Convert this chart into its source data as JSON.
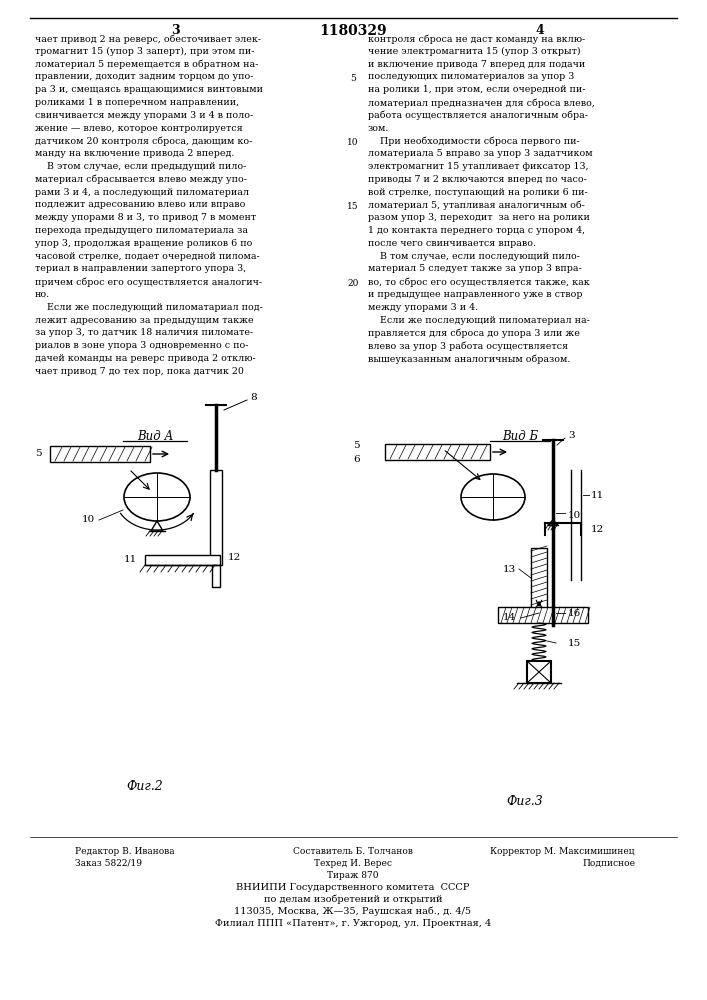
{
  "title_number": "1180329",
  "page_left": "3",
  "page_right": "4",
  "bg_color": "#ffffff",
  "text_color": "#000000",
  "left_column_lines": [
    "чает привод 2 на реверс, обесточивает элек-",
    "тромагнит 15 (упор 3 заперт), при этом пи-",
    "ломатериал 5 перемещается в обратном на-",
    "правлении, доходит задним торцом до упо-",
    "ра 3 и, смещаясь вращающимися винтовыми",
    "роликами 1 в поперечном направлении,",
    "свинчивается между упорами 3 и 4 в поло-",
    "жение — влево, которое контролируется",
    "датчиком 20 контроля сброса, дающим ко-",
    "манду на включение привода 2 вперед.",
    "    В этом случае, если предыдущий пило-",
    "материал сбрасывается влево между упо-",
    "рами 3 и 4, а последующий пиломатериал",
    "подлежит адресованию влево или вправо",
    "между упорами 8 и 3, то привод 7 в момент",
    "перехода предыдущего пиломатериала за",
    "упор 3, продолжая вращение роликов 6 по",
    "часовой стрелке, подает очередной пилома-",
    "териал в направлении запертого упора 3,",
    "причем сброс его осуществляется аналогич-",
    "но.",
    "    Если же последующий пиломатариал под-",
    "лежит адресованию за предыдущим также",
    "за упор 3, то датчик 18 наличия пиломате-",
    "риалов в зоне упора 3 одновременно с по-",
    "дачей команды на реверс привода 2 отклю-",
    "чает привод 7 до тех пор, пока датчик 20"
  ],
  "right_column_lines": [
    "контроля сброса не даст команду на вклю-",
    "чение электромагнита 15 (упор 3 открыт)",
    "и включение привода 7 вперед для подачи",
    "последующих пиломатериалов за упор 3",
    "на ролики 1, при этом, если очередной пи-",
    "ломатериал предназначен для сброса влево,",
    "работа осуществляется аналогичным обра-",
    "зом.",
    "    При необходимости сброса первого пи-",
    "ломатериала 5 вправо за упор 3 задатчиком",
    "электромагнит 15 утапливает фиксатор 13,",
    "приводы 7 и 2 включаются вперед по часо-",
    "вой стрелке, поступающий на ролики 6 пи-",
    "ломатериал 5, утапливая аналогичным об-",
    "разом упор 3, переходит  за него на ролики",
    "1 до контакта переднего торца с упором 4,",
    "после чего свинчивается вправо.",
    "    В том случае, если последующий пило-",
    "материал 5 следует также за упор 3 впра-",
    "во, то сброс его осуществляется также, как",
    "и предыдущее направленного уже в створ",
    "между упорами 3 и 4.",
    "    Если же последующий пиломатериал на-",
    "правляется для сброса до упора 3 или же",
    "влево за упор 3 работа осуществляется",
    "вышеуказанным аналогичным образом."
  ],
  "line_numbers": [
    [
      5,
      4
    ],
    [
      10,
      9
    ],
    [
      15,
      14
    ],
    [
      20,
      20
    ]
  ],
  "view_a_label": "Вид А",
  "view_b_label": "Вид Б",
  "fig2_label": "Фиг.2",
  "fig3_label": "Фиг.3"
}
